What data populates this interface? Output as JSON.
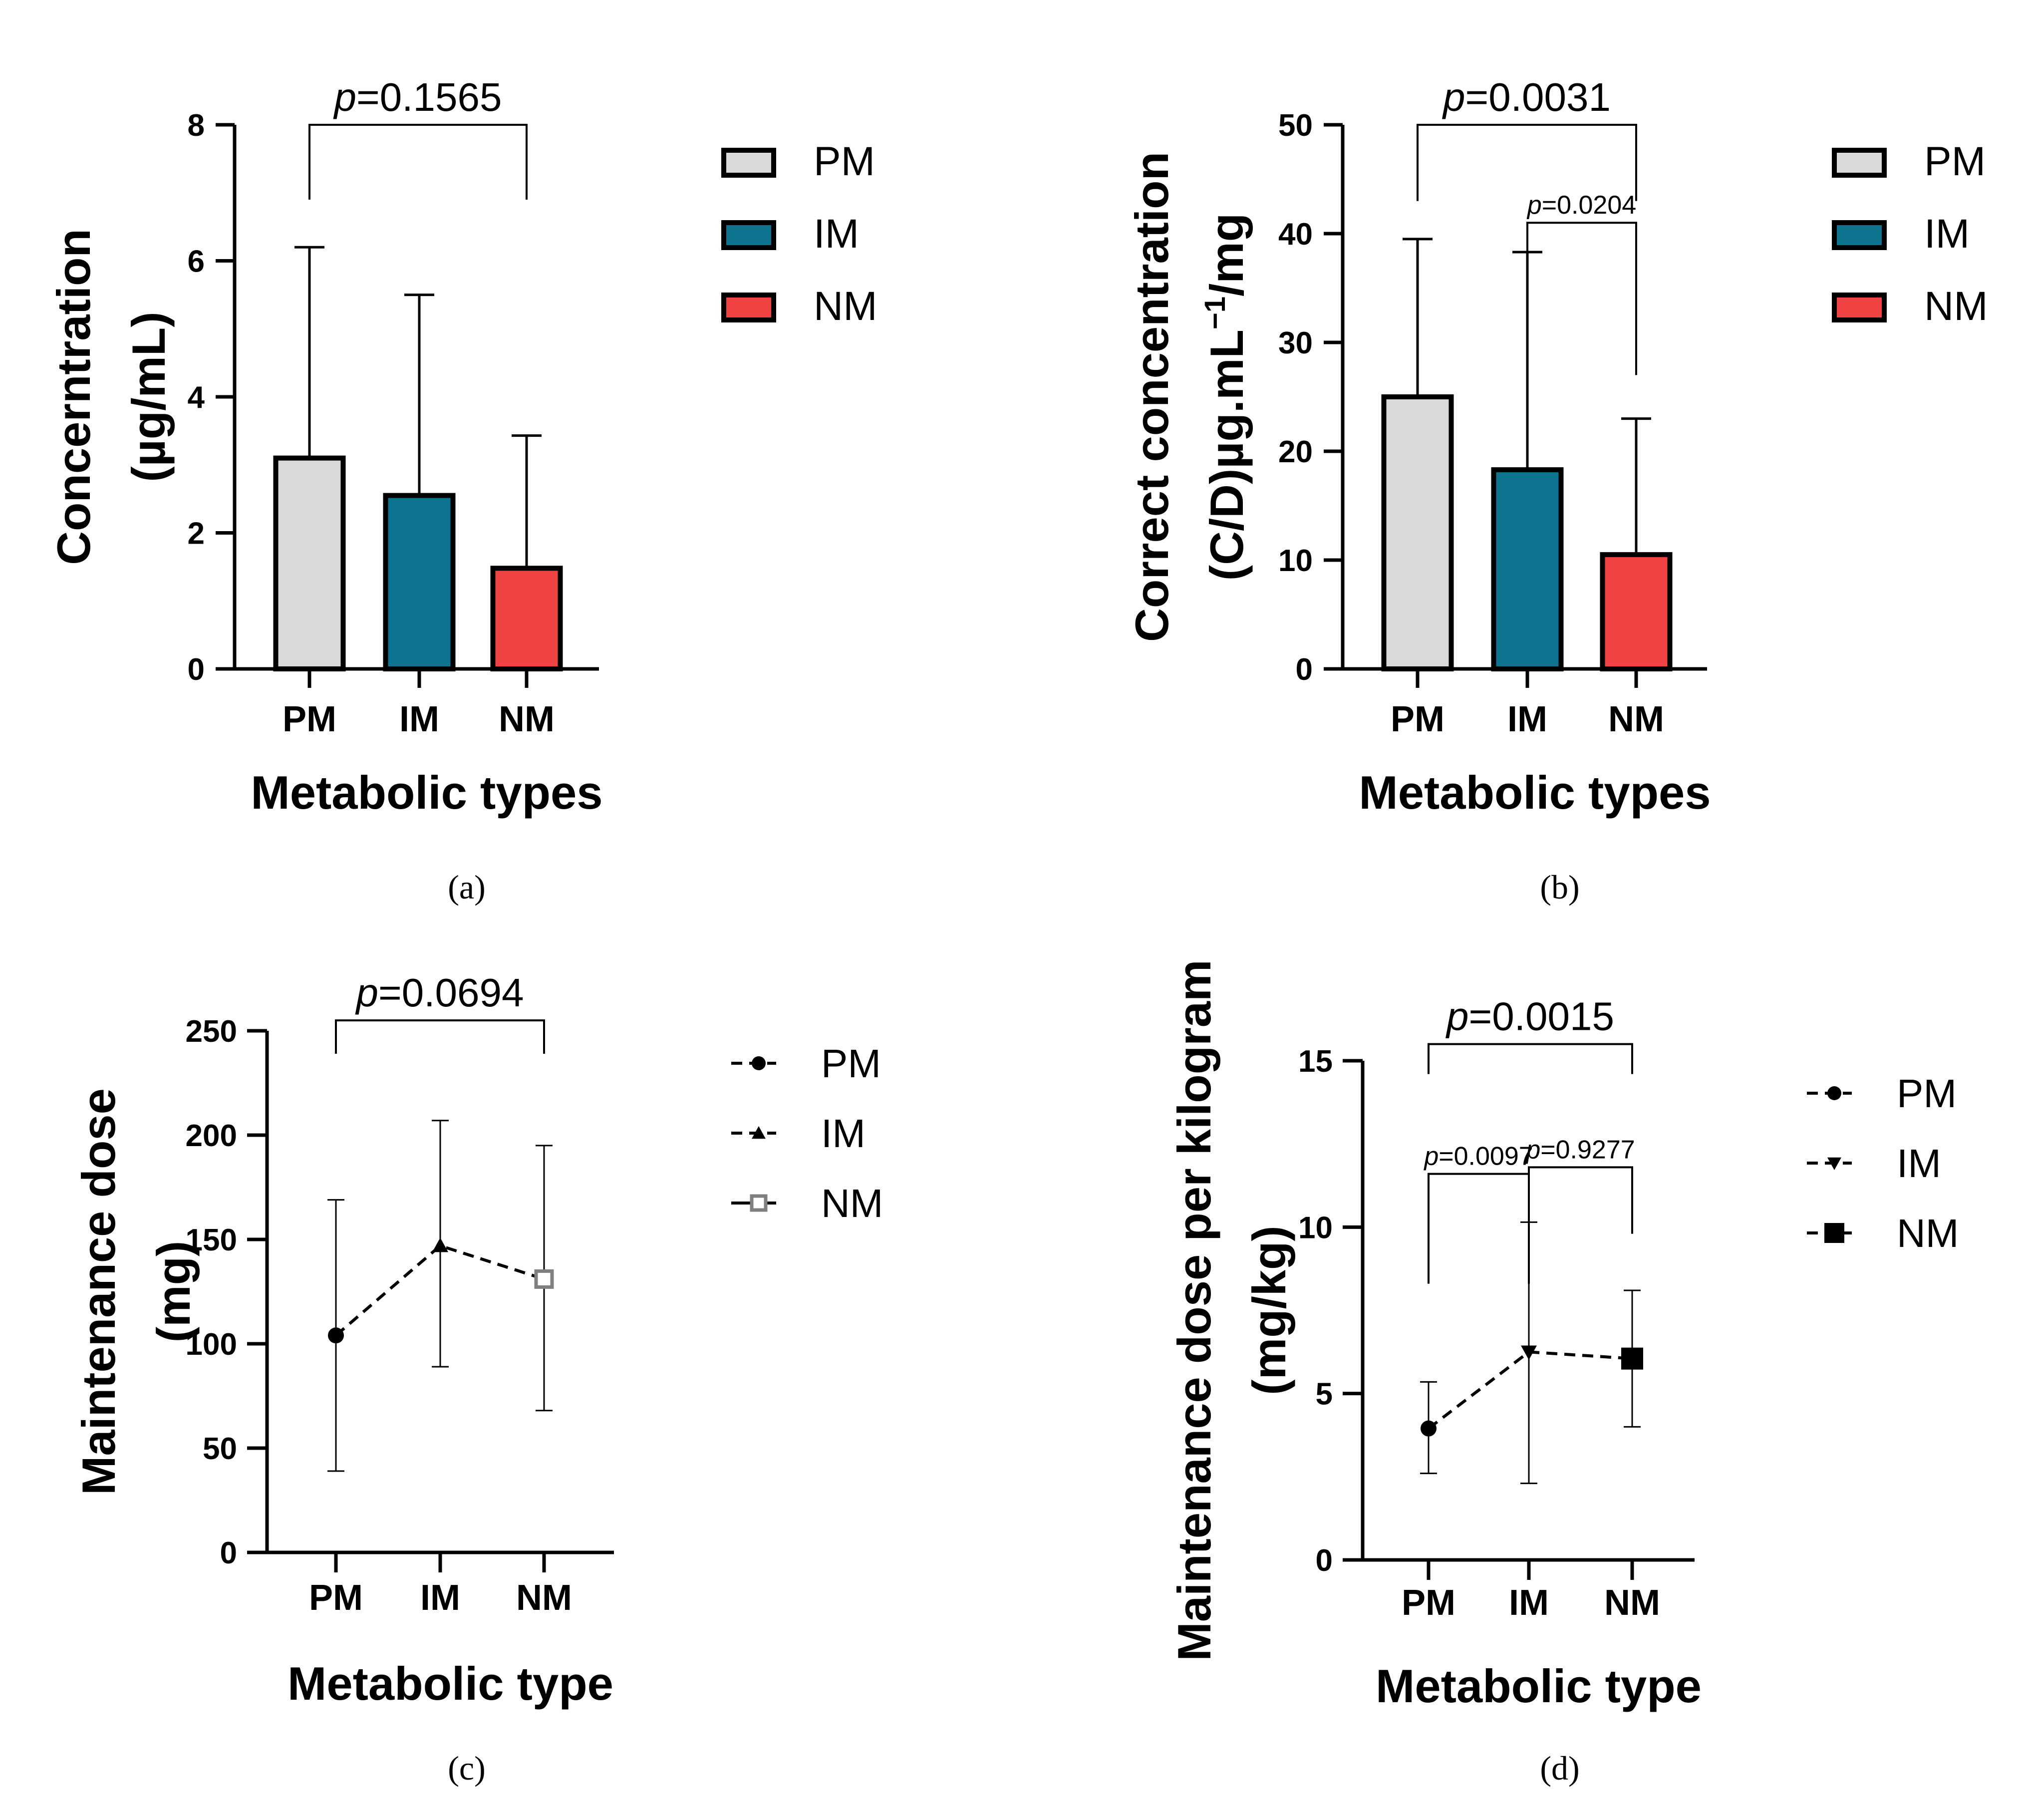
{
  "colors": {
    "PM": "#d9d9d9",
    "IM": "#0e7490",
    "NM": "#f14343",
    "axis": "#000000",
    "nm_open": "#7f7f7f"
  },
  "chart_data": [
    {
      "id": "a",
      "type": "bar",
      "caption": "(a)",
      "categories": [
        "PM",
        "IM",
        "NM"
      ],
      "values": [
        3.1,
        2.55,
        1.48
      ],
      "errors_upper": [
        6.2,
        5.5,
        3.43
      ],
      "ylim": [
        0,
        8
      ],
      "yticks": [
        0,
        2,
        4,
        6,
        8
      ],
      "xlabel": "Metabolic types",
      "ylabel_lines": [
        "Concerntration",
        "(µg/mL)"
      ],
      "legend": [
        "PM",
        "IM",
        "NM"
      ],
      "comparisons": [
        {
          "from": 0,
          "to": 2,
          "pvalue": "=0.1565",
          "level": 8.0,
          "ends": 6.9
        }
      ]
    },
    {
      "id": "b",
      "type": "bar",
      "caption": "(b)",
      "categories": [
        "PM",
        "IM",
        "NM"
      ],
      "values": [
        25.0,
        18.3,
        10.5
      ],
      "errors_upper": [
        39.5,
        38.3,
        23.0
      ],
      "ylim": [
        0,
        50
      ],
      "yticks": [
        0,
        10,
        20,
        30,
        40,
        50
      ],
      "xlabel": "Metabolic types",
      "ylabel_lines": [
        "Correct concentration",
        "(C/D)µg.mL",
        "−1",
        "/mg"
      ],
      "legend": [
        "PM",
        "IM",
        "NM"
      ],
      "comparisons": [
        {
          "from": 0,
          "to": 2,
          "pvalue": "=0.0031",
          "level": 50.0,
          "ends": 43.0,
          "big": true
        },
        {
          "from": 1,
          "to": 2,
          "pvalue": "=0.0204",
          "level": 41.0,
          "ends": 27.0,
          "big": false
        }
      ]
    },
    {
      "id": "c",
      "type": "line",
      "caption": "(c)",
      "categories": [
        "PM",
        "IM",
        "NM"
      ],
      "values": [
        104,
        147,
        131
      ],
      "errors_upper": [
        169,
        207,
        195
      ],
      "errors_lower": [
        39,
        89,
        68
      ],
      "ylim": [
        0,
        250
      ],
      "yticks": [
        0,
        50,
        100,
        150,
        200,
        250
      ],
      "xlabel": "Metabolic type",
      "ylabel_lines": [
        "Maintenance dose",
        "(mg)"
      ],
      "legend": [
        "PM",
        "IM",
        "NM"
      ],
      "markers": [
        "circle",
        "triangle",
        "square-open"
      ],
      "comparisons": [
        {
          "from": 0,
          "to": 2,
          "pvalue": "=0.0694",
          "level": 255.0,
          "ends": 239.0,
          "big": true
        }
      ]
    },
    {
      "id": "d",
      "type": "line",
      "caption": "(d)",
      "categories": [
        "PM",
        "IM",
        "NM"
      ],
      "values": [
        3.95,
        6.25,
        6.05
      ],
      "errors_upper": [
        5.35,
        10.15,
        8.1
      ],
      "errors_lower": [
        2.6,
        2.3,
        4.0
      ],
      "ylim": [
        0,
        15
      ],
      "yticks": [
        0,
        5,
        10,
        15
      ],
      "xlabel": "Metabolic type",
      "ylabel_lines": [
        "Maintenance dose per kilogram",
        "(mg/kg)"
      ],
      "legend": [
        "PM",
        "IM",
        "NM"
      ],
      "markers": [
        "circle",
        "triangle-down",
        "square"
      ],
      "comparisons": [
        {
          "from": 0,
          "to": 2,
          "pvalue": "=0.0015",
          "level": 15.5,
          "ends": 14.6,
          "big": true
        },
        {
          "from": 0,
          "to": 1,
          "pvalue": "=0.0097",
          "level": 11.6,
          "ends": 8.3,
          "big": false
        },
        {
          "from": 1,
          "to": 2,
          "pvalue": "=0.9277",
          "level": 11.8,
          "ends": 9.8,
          "big": false
        }
      ]
    }
  ]
}
